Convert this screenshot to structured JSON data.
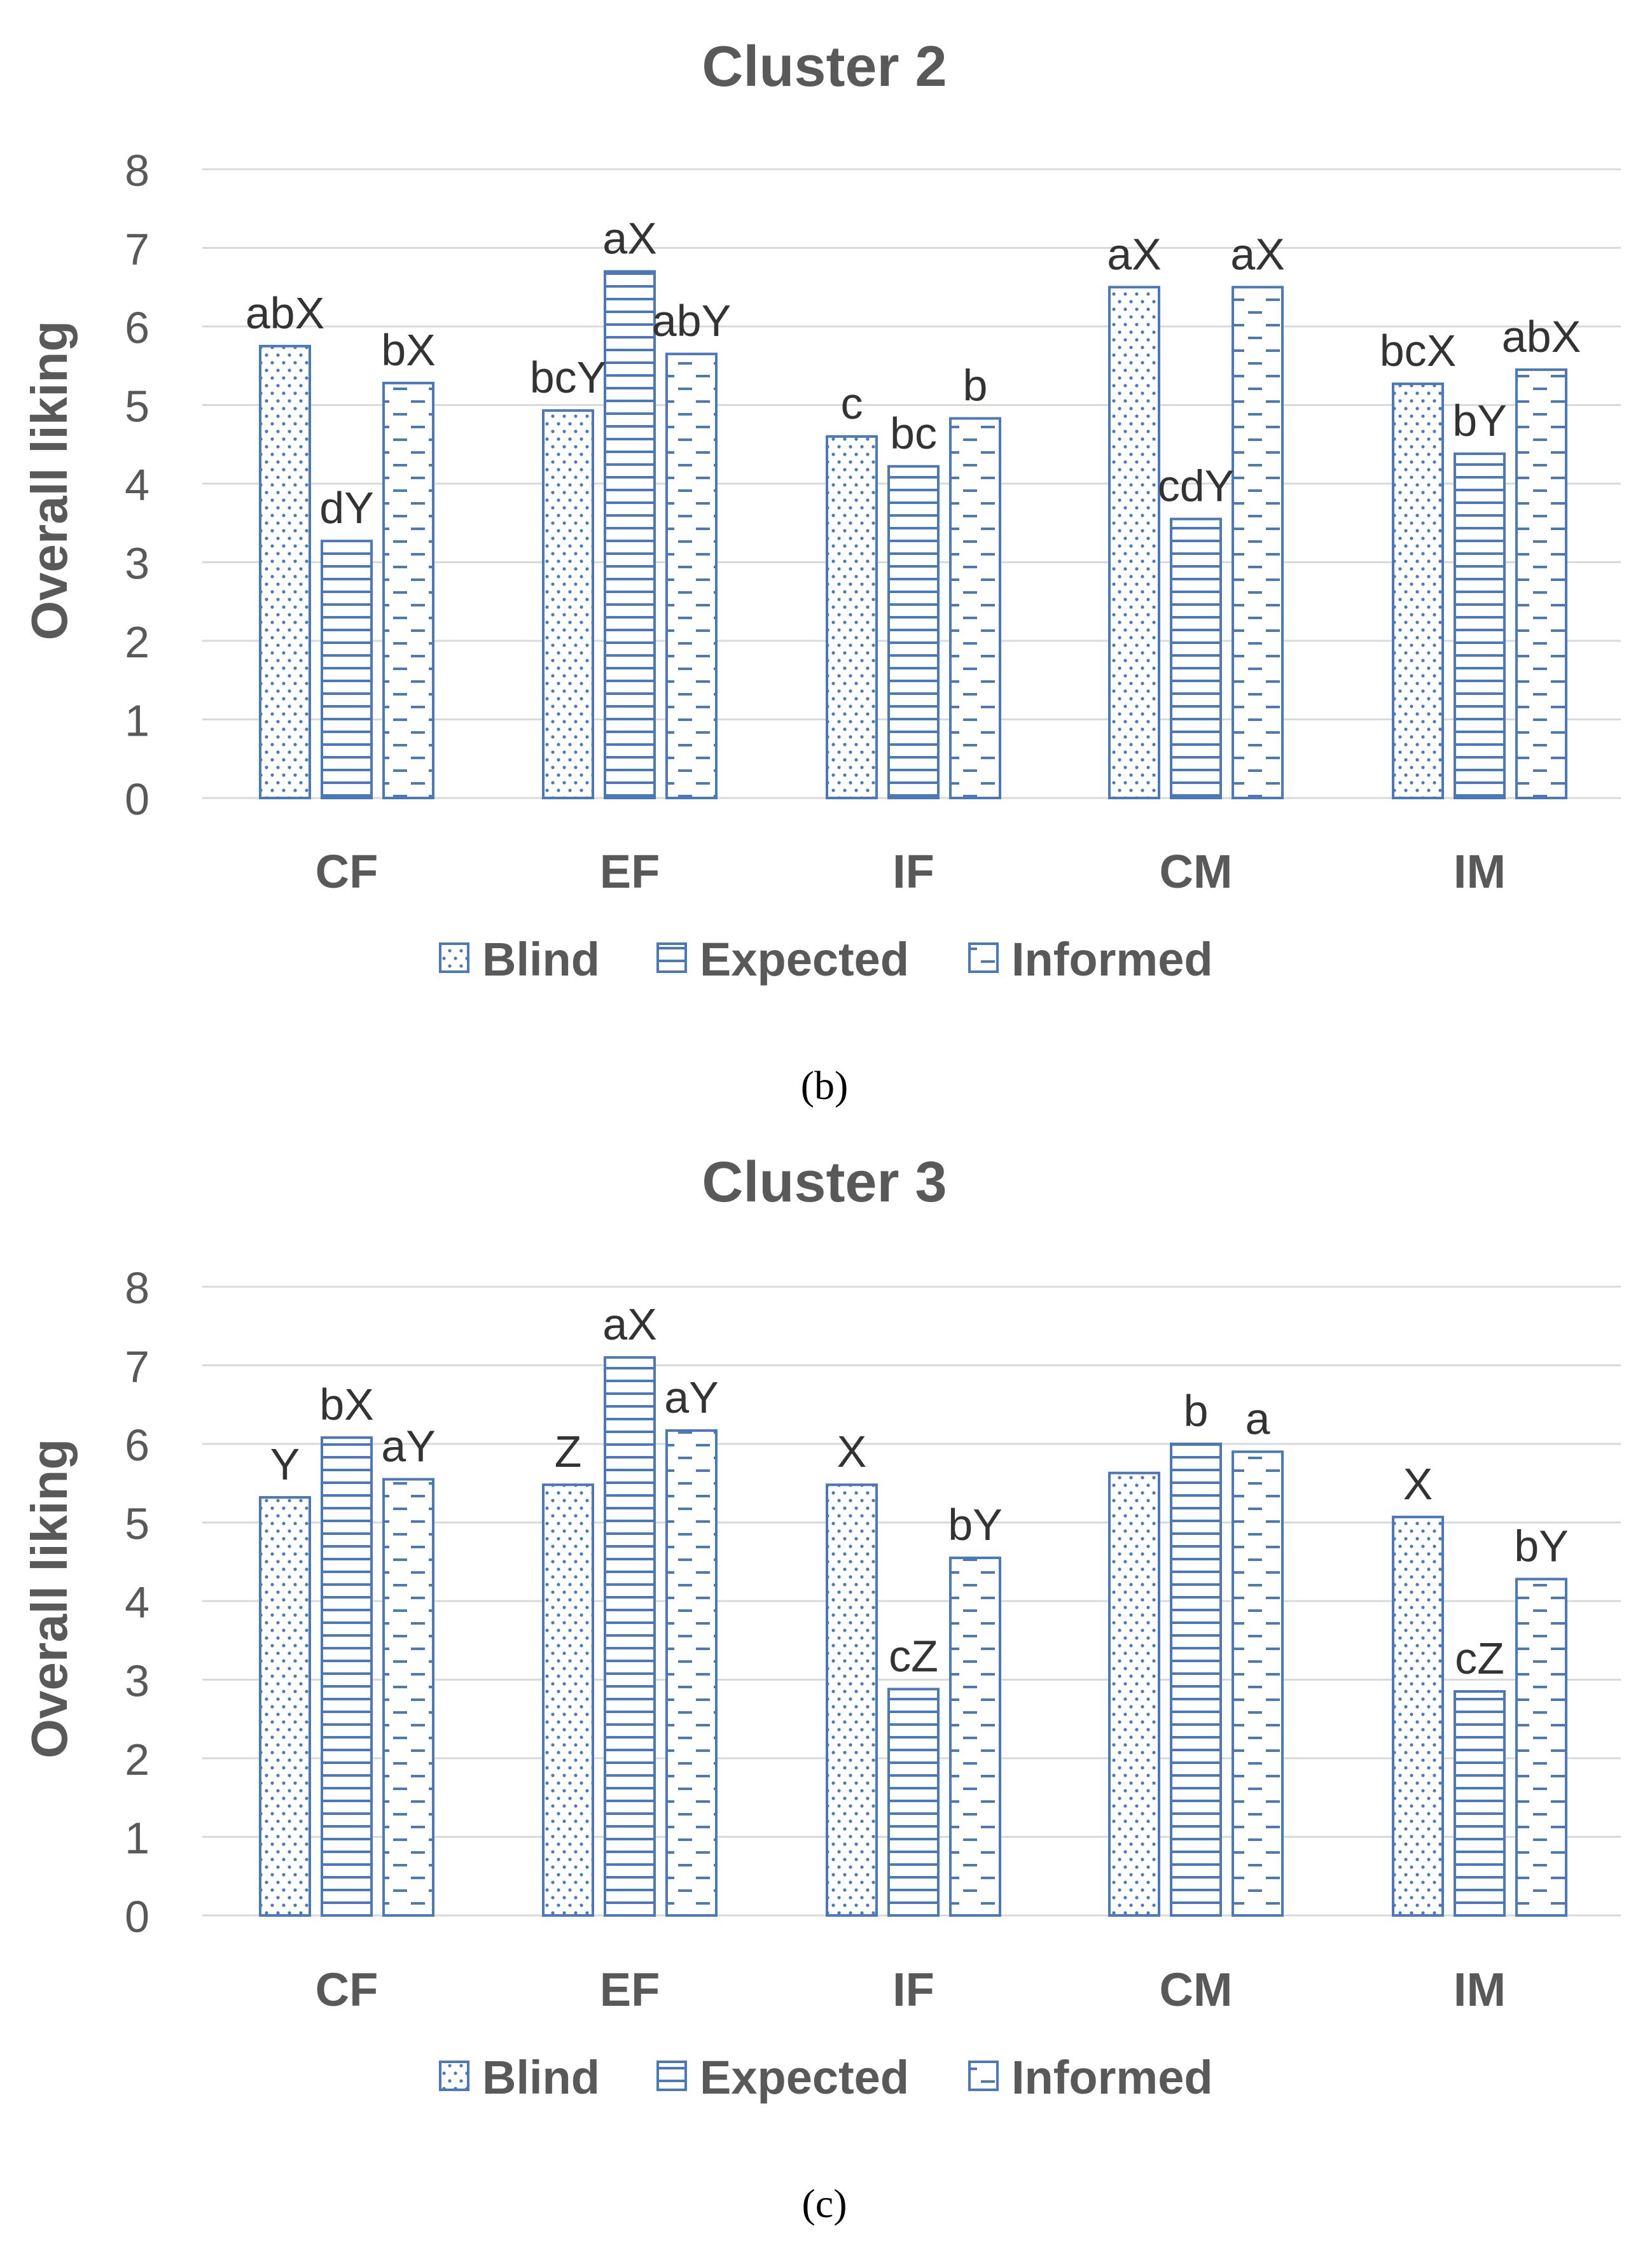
{
  "colors": {
    "bar_stroke": "#4a78b8",
    "grid": "#d9d9d9",
    "text": "#595959",
    "label": "#333333",
    "caption": "#000000"
  },
  "legend": [
    {
      "name": "Blind",
      "pattern": "dots"
    },
    {
      "name": "Expected",
      "pattern": "hlines"
    },
    {
      "name": "Informed",
      "pattern": "dashes"
    }
  ],
  "chart_data": [
    {
      "type": "bar",
      "title": "Cluster 2",
      "caption": "(b)",
      "xlabel": "",
      "ylabel": "Overall liking",
      "ylim": [
        0,
        8
      ],
      "yticks": [
        0,
        1,
        2,
        3,
        4,
        5,
        6,
        7,
        8
      ],
      "categories": [
        "CF",
        "EF",
        "IF",
        "CM",
        "IM"
      ],
      "series": [
        {
          "name": "Blind",
          "values": [
            5.75,
            4.93,
            4.6,
            6.5,
            5.27
          ],
          "labels": [
            "abX",
            "bcY",
            "c",
            "aX",
            "bcX"
          ]
        },
        {
          "name": "Expected",
          "values": [
            3.27,
            6.7,
            4.22,
            3.55,
            4.38
          ],
          "labels": [
            "dY",
            "aX",
            "bc",
            "cdY",
            "bY"
          ]
        },
        {
          "name": "Informed",
          "values": [
            5.28,
            5.65,
            4.83,
            6.5,
            5.45
          ],
          "labels": [
            "bX",
            "abY",
            "b",
            "aX",
            "abX"
          ]
        }
      ]
    },
    {
      "type": "bar",
      "title": "Cluster 3",
      "caption": "(c)",
      "xlabel": "",
      "ylabel": "Overall liking",
      "ylim": [
        0,
        8
      ],
      "yticks": [
        0,
        1,
        2,
        3,
        4,
        5,
        6,
        7,
        8
      ],
      "categories": [
        "CF",
        "EF",
        "IF",
        "CM",
        "IM"
      ],
      "series": [
        {
          "name": "Blind",
          "values": [
            5.32,
            5.48,
            5.48,
            5.63,
            5.07
          ],
          "labels": [
            "Y",
            "Z",
            "X",
            "",
            "X"
          ]
        },
        {
          "name": "Expected",
          "values": [
            6.08,
            7.1,
            2.88,
            6.0,
            2.85
          ],
          "labels": [
            "bX",
            "aX",
            "cZ",
            "b",
            "cZ"
          ]
        },
        {
          "name": "Informed",
          "values": [
            5.55,
            6.17,
            4.55,
            5.9,
            4.28
          ],
          "labels": [
            "aY",
            "aY",
            "bY",
            "a",
            "bY"
          ]
        }
      ]
    }
  ]
}
